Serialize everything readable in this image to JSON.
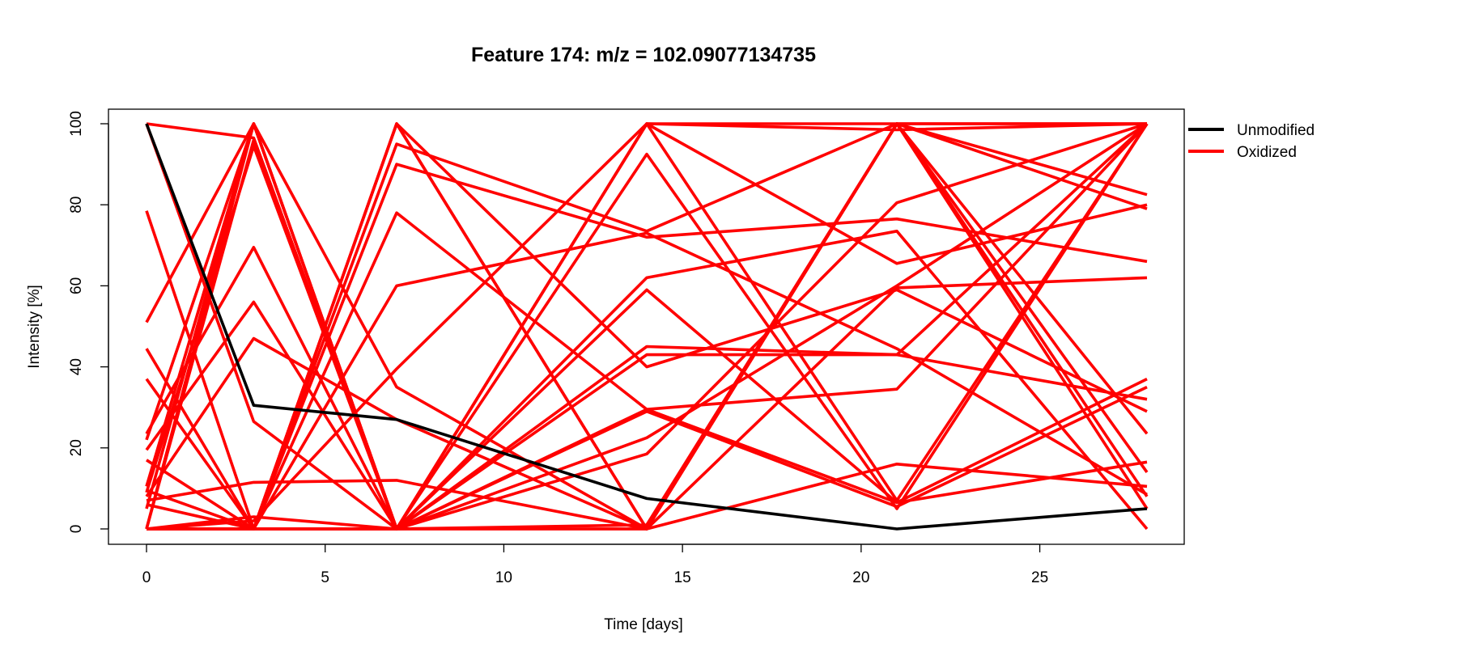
{
  "chart_data": {
    "type": "line",
    "title": "Feature 174: m/z = 102.09077134735",
    "xlabel": "Time [days]",
    "ylabel": "Intensity [%]",
    "x": [
      0,
      3,
      7,
      14,
      21,
      28
    ],
    "xlim": [
      0,
      28
    ],
    "ylim": [
      0,
      100
    ],
    "x_ticks": [
      0,
      5,
      10,
      15,
      20,
      25
    ],
    "y_ticks": [
      0,
      20,
      40,
      60,
      80,
      100
    ],
    "grid": false,
    "legend_position": "outside-top-right",
    "legend": [
      {
        "label": "Unmodified",
        "color": "#000000"
      },
      {
        "label": "Oxidized",
        "color": "#ff0000"
      }
    ],
    "series": [
      {
        "group": "Unmodified",
        "color": "#000000",
        "values": [
          100,
          30.5,
          27,
          7.5,
          0,
          5
        ]
      },
      {
        "group": "Oxidized",
        "color": "#ff0000",
        "values": [
          100,
          96.5,
          0,
          100,
          100,
          100
        ]
      },
      {
        "group": "Oxidized",
        "color": "#ff0000",
        "values": [
          100,
          26.5,
          0,
          100,
          98.5,
          100
        ]
      },
      {
        "group": "Oxidized",
        "color": "#ff0000",
        "values": [
          78.5,
          0,
          95,
          73.5,
          100,
          79
        ]
      },
      {
        "group": "Oxidized",
        "color": "#ff0000",
        "values": [
          51,
          100,
          0,
          92.5,
          5,
          100
        ]
      },
      {
        "group": "Oxidized",
        "color": "#ff0000",
        "values": [
          44.5,
          0,
          100,
          0,
          100,
          82.5
        ]
      },
      {
        "group": "Oxidized",
        "color": "#ff0000",
        "values": [
          37,
          0,
          90,
          72,
          76.5,
          66
        ]
      },
      {
        "group": "Oxidized",
        "color": "#ff0000",
        "values": [
          23.5,
          69.5,
          0,
          100,
          65.5,
          80
        ]
      },
      {
        "group": "Oxidized",
        "color": "#ff0000",
        "values": [
          22,
          100,
          35,
          0,
          59.5,
          62
        ]
      },
      {
        "group": "Oxidized",
        "color": "#ff0000",
        "values": [
          19.5,
          56,
          0,
          59,
          6.5,
          37
        ]
      },
      {
        "group": "Oxidized",
        "color": "#ff0000",
        "values": [
          17,
          0,
          100,
          40,
          59,
          29
        ]
      },
      {
        "group": "Oxidized",
        "color": "#ff0000",
        "values": [
          10.5,
          100,
          0,
          45,
          43,
          32
        ]
      },
      {
        "group": "Oxidized",
        "color": "#ff0000",
        "values": [
          9.5,
          0,
          78,
          29.5,
          34.5,
          100
        ]
      },
      {
        "group": "Oxidized",
        "color": "#ff0000",
        "values": [
          9,
          94.5,
          0,
          0,
          100,
          14
        ]
      },
      {
        "group": "Oxidized",
        "color": "#ff0000",
        "values": [
          8,
          47,
          27,
          0,
          100,
          100
        ]
      },
      {
        "group": "Oxidized",
        "color": "#ff0000",
        "values": [
          7,
          11.5,
          12,
          0,
          100,
          23.5
        ]
      },
      {
        "group": "Oxidized",
        "color": "#ff0000",
        "values": [
          6,
          0,
          60,
          73,
          44.5,
          8.5
        ]
      },
      {
        "group": "Oxidized",
        "color": "#ff0000",
        "values": [
          5,
          100,
          0,
          18.5,
          80.5,
          100
        ]
      },
      {
        "group": "Oxidized",
        "color": "#ff0000",
        "values": [
          0,
          100,
          0,
          29,
          5.5,
          35
        ]
      },
      {
        "group": "Oxidized",
        "color": "#ff0000",
        "values": [
          0,
          96,
          0,
          62,
          73.5,
          0
        ]
      },
      {
        "group": "Oxidized",
        "color": "#ff0000",
        "values": [
          0,
          2,
          39.5,
          100,
          7,
          100
        ]
      },
      {
        "group": "Oxidized",
        "color": "#ff0000",
        "values": [
          0,
          0,
          100,
          0,
          16,
          10.5
        ]
      },
      {
        "group": "Oxidized",
        "color": "#ff0000",
        "values": [
          0,
          0,
          0,
          29.5,
          6.5,
          16.5
        ]
      },
      {
        "group": "Oxidized",
        "color": "#ff0000",
        "values": [
          0,
          0,
          0,
          0,
          100,
          5
        ]
      },
      {
        "group": "Oxidized",
        "color": "#ff0000",
        "values": [
          0,
          0,
          0,
          43,
          43,
          100
        ]
      },
      {
        "group": "Oxidized",
        "color": "#ff0000",
        "values": [
          0,
          3,
          0,
          22.5,
          60,
          100
        ]
      },
      {
        "group": "Oxidized",
        "color": "#ff0000",
        "values": [
          0,
          0,
          0,
          1,
          100,
          8
        ]
      }
    ]
  }
}
